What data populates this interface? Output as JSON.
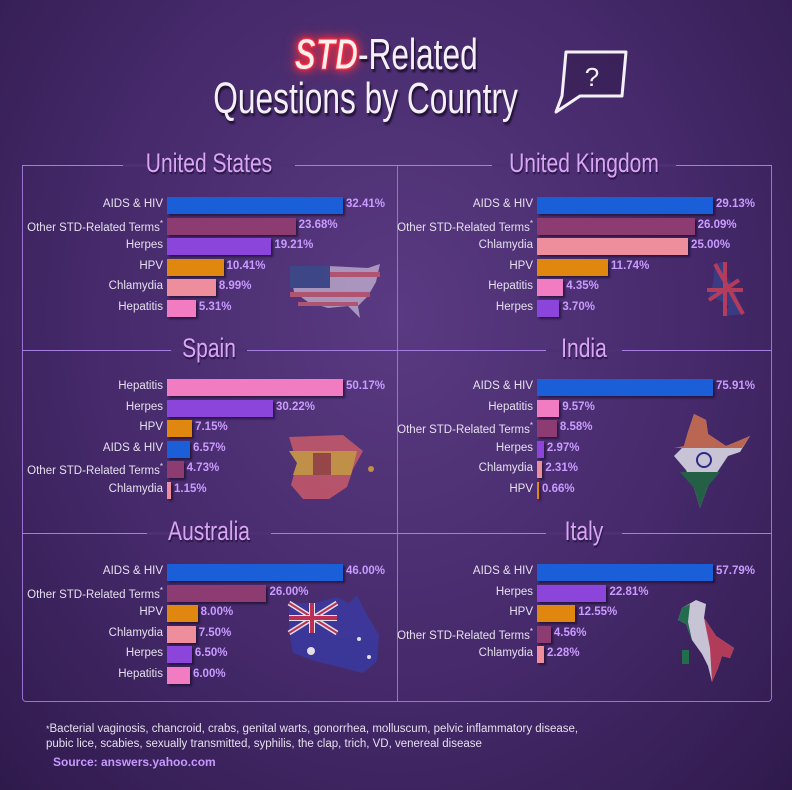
{
  "title": {
    "highlight": "STD",
    "line1_rest": "-Related",
    "line2": "Questions by Country",
    "bubble_symbol": "?"
  },
  "colors": {
    "AIDS & HIV": "#1a5ed8",
    "Other STD-Related Terms": "#8c3c70",
    "Herpes": "#8b45da",
    "HPV": "#e0870f",
    "Chlamydia": "#ee8d9c",
    "Hepatitis": "#f27cc2",
    "accent": "#d9a6f5",
    "value_text": "#c99bff"
  },
  "chart_data": [
    {
      "type": "bar",
      "orientation": "horizontal",
      "title": "United States",
      "map_icon": "usa-flag-map",
      "categories": [
        "AIDS & HIV",
        "Other STD-Related Terms",
        "Herpes",
        "HPV",
        "Chlamydia",
        "Hepatitis"
      ],
      "values": [
        32.41,
        23.68,
        19.21,
        10.41,
        8.99,
        5.31
      ],
      "labels": [
        "32.41%",
        "23.68%",
        "19.21%",
        "10.41%",
        "8.99%",
        "5.31%"
      ]
    },
    {
      "type": "bar",
      "orientation": "horizontal",
      "title": "United Kingdom",
      "map_icon": "uk-flag-map",
      "categories": [
        "AIDS & HIV",
        "Other STD-Related Terms",
        "Chlamydia",
        "HPV",
        "Hepatitis",
        "Herpes"
      ],
      "values": [
        29.13,
        26.09,
        25.0,
        11.74,
        4.35,
        3.7
      ],
      "labels": [
        "29.13%",
        "26.09%",
        "25.00%",
        "11.74%",
        "4.35%",
        "3.70%"
      ]
    },
    {
      "type": "bar",
      "orientation": "horizontal",
      "title": "Spain",
      "map_icon": "spain-flag-map",
      "categories": [
        "Hepatitis",
        "Herpes",
        "HPV",
        "AIDS & HIV",
        "Other STD-Related Terms",
        "Chlamydia"
      ],
      "values": [
        50.17,
        30.22,
        7.15,
        6.57,
        4.73,
        1.15
      ],
      "labels": [
        "50.17%",
        "30.22%",
        "7.15%",
        "6.57%",
        "4.73%",
        "1.15%"
      ]
    },
    {
      "type": "bar",
      "orientation": "horizontal",
      "title": "India",
      "map_icon": "india-flag-map",
      "categories": [
        "AIDS & HIV",
        "Hepatitis",
        "Other STD-Related Terms",
        "Herpes",
        "Chlamydia",
        "HPV"
      ],
      "values": [
        75.91,
        9.57,
        8.58,
        2.97,
        2.31,
        0.66
      ],
      "labels": [
        "75.91%",
        "9.57%",
        "8.58%",
        "2.97%",
        "2.31%",
        "0.66%"
      ]
    },
    {
      "type": "bar",
      "orientation": "horizontal",
      "title": "Australia",
      "map_icon": "australia-flag-map",
      "categories": [
        "AIDS & HIV",
        "Other STD-Related Terms",
        "HPV",
        "Chlamydia",
        "Herpes",
        "Hepatitis"
      ],
      "values": [
        46.0,
        26.0,
        8.0,
        7.5,
        6.5,
        6.0
      ],
      "labels": [
        "46.00%",
        "26.00%",
        "8.00%",
        "7.50%",
        "6.50%",
        "6.00%"
      ]
    },
    {
      "type": "bar",
      "orientation": "horizontal",
      "title": "Italy",
      "map_icon": "italy-flag-map",
      "categories": [
        "AIDS & HIV",
        "Herpes",
        "HPV",
        "Other STD-Related Terms",
        "Chlamydia"
      ],
      "values": [
        57.79,
        22.81,
        12.55,
        4.56,
        2.28
      ],
      "labels": [
        "57.79%",
        "22.81%",
        "12.55%",
        "4.56%",
        "2.28%"
      ]
    }
  ],
  "asterisk": "*",
  "footnote": "Bacterial vaginosis, chancroid, crabs, genital warts, gonorrhea, molluscum, pelvic inflammatory disease, pubic lice, scabies, sexually transmitted, syphilis, the clap, trich, VD, venereal disease",
  "source": "Source: answers.yahoo.com"
}
